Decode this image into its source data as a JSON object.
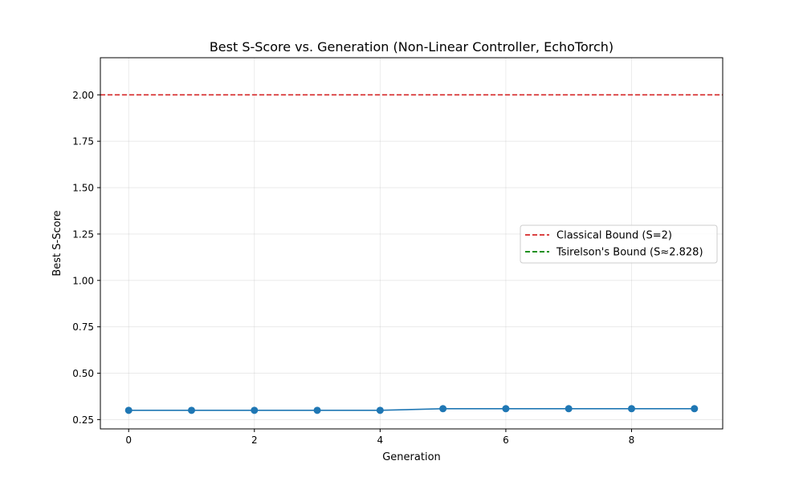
{
  "chart_data": {
    "type": "line",
    "title": "Best S-Score vs. Generation (Non-Linear Controller, EchoTorch)",
    "xlabel": "Generation",
    "ylabel": "Best S-Score",
    "xlim": [
      -0.45,
      9.45
    ],
    "ylim": [
      0.2,
      2.2
    ],
    "xticks": [
      0,
      2,
      4,
      6,
      8
    ],
    "xtick_labels": [
      "0",
      "2",
      "4",
      "6",
      "8"
    ],
    "yticks": [
      0.25,
      0.5,
      0.75,
      1.0,
      1.25,
      1.5,
      1.75,
      2.0
    ],
    "ytick_labels": [
      "0.25",
      "0.50",
      "0.75",
      "1.00",
      "1.25",
      "1.50",
      "1.75",
      "2.00"
    ],
    "grid": true,
    "legend_position": "center-right",
    "series": [
      {
        "color": "#1f77b4",
        "marker": "circle",
        "x": [
          0,
          1,
          2,
          3,
          4,
          5,
          6,
          7,
          8,
          9
        ],
        "y": [
          0.3,
          0.3,
          0.3,
          0.3,
          0.3,
          0.309,
          0.309,
          0.309,
          0.309,
          0.309
        ]
      }
    ],
    "reference_lines": [
      {
        "name": "Classical Bound (S=2)",
        "y": 2.0,
        "color": "#d62728",
        "style": "dashed"
      },
      {
        "name": "Tsirelson's Bound (S≈2.828)",
        "y": 2.828,
        "color": "#008000",
        "style": "dashed"
      }
    ]
  }
}
